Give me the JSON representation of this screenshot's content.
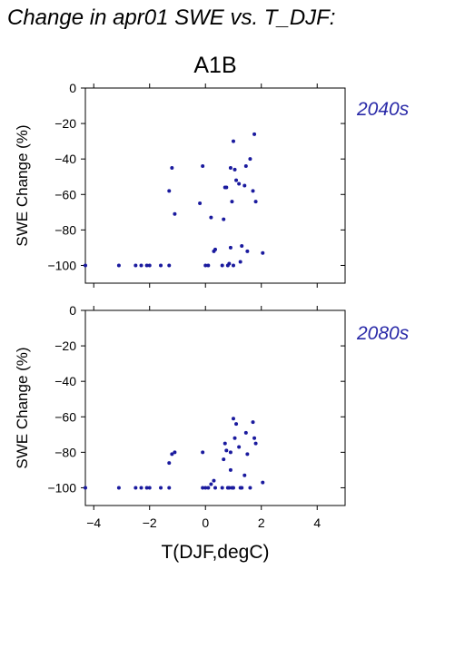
{
  "figure": {
    "title": "Change in apr01 SWE vs. T_DJF:",
    "scenario": "A1B",
    "xlabel": "T(DJF,degC)",
    "point_color": "#1a1a9e",
    "panel_label_color": "#2a2aa8"
  },
  "chart_data": [
    {
      "type": "scatter",
      "panel_label": "2040s",
      "xlabel": "T(DJF,degC)",
      "ylabel": "SWE Change (%)",
      "xlim": [
        -4.3,
        5.0
      ],
      "ylim": [
        -110,
        0
      ],
      "xticks": [
        -4,
        -2,
        0,
        2,
        4
      ],
      "xtick_labels": [
        "−4",
        "−2",
        "0",
        "2",
        "4"
      ],
      "yticks": [
        0,
        -20,
        -40,
        -60,
        -80,
        -100
      ],
      "ytick_labels": [
        "0",
        "−20",
        "−40",
        "−60",
        "−80",
        "−100"
      ],
      "show_xtick_labels": false,
      "grid": false,
      "x": [
        -4.3,
        -3.1,
        -2.5,
        -2.3,
        -2.1,
        -2.0,
        -1.6,
        -1.3,
        -1.3,
        -1.2,
        -1.1,
        -0.1,
        -0.2,
        0.0,
        0.1,
        0.2,
        0.3,
        0.35,
        0.6,
        0.65,
        0.7,
        0.75,
        0.8,
        0.85,
        0.9,
        0.9,
        0.95,
        1.0,
        1.0,
        1.05,
        1.1,
        1.2,
        1.25,
        1.3,
        1.4,
        1.45,
        1.5,
        1.6,
        1.7,
        1.75,
        1.8,
        2.05
      ],
      "y": [
        -100,
        -100,
        -100,
        -100,
        -100,
        -100,
        -100,
        -58,
        -100,
        -45,
        -71,
        -44,
        -65,
        -100,
        -100,
        -73,
        -92,
        -91,
        -100,
        -74,
        -56,
        -56,
        -100,
        -99,
        -45,
        -90,
        -64,
        -30,
        -100,
        -46,
        -52,
        -54,
        -98,
        -89,
        -55,
        -44,
        -92,
        -40,
        -58,
        -26,
        -64,
        -93
      ]
    },
    {
      "type": "scatter",
      "panel_label": "2080s",
      "xlabel": "T(DJF,degC)",
      "ylabel": "SWE Change (%)",
      "xlim": [
        -4.3,
        5.0
      ],
      "ylim": [
        -110,
        0
      ],
      "xticks": [
        -4,
        -2,
        0,
        2,
        4
      ],
      "xtick_labels": [
        "−4",
        "−2",
        "0",
        "2",
        "4"
      ],
      "yticks": [
        0,
        -20,
        -40,
        -60,
        -80,
        -100
      ],
      "ytick_labels": [
        "0",
        "−20",
        "−40",
        "−60",
        "−80",
        "−100"
      ],
      "show_xtick_labels": true,
      "grid": false,
      "x": [
        -4.3,
        -3.1,
        -2.5,
        -2.3,
        -2.1,
        -2.0,
        -1.6,
        -1.3,
        -1.3,
        -1.2,
        -1.1,
        -0.1,
        -0.1,
        0.0,
        0.1,
        0.2,
        0.3,
        0.35,
        0.6,
        0.65,
        0.7,
        0.75,
        0.8,
        0.85,
        0.9,
        0.9,
        0.95,
        1.0,
        1.0,
        1.05,
        1.1,
        1.2,
        1.25,
        1.3,
        1.4,
        1.45,
        1.5,
        1.6,
        1.7,
        1.75,
        1.8,
        2.05
      ],
      "y": [
        -100,
        -100,
        -100,
        -100,
        -100,
        -100,
        -100,
        -86,
        -100,
        -81,
        -80,
        -80,
        -100,
        -100,
        -100,
        -98,
        -96,
        -100,
        -100,
        -84,
        -75,
        -79,
        -100,
        -100,
        -80,
        -90,
        -100,
        -61,
        -100,
        -72,
        -64,
        -77,
        -100,
        -100,
        -93,
        -69,
        -81,
        -100,
        -63,
        -72,
        -75,
        -97
      ]
    }
  ]
}
